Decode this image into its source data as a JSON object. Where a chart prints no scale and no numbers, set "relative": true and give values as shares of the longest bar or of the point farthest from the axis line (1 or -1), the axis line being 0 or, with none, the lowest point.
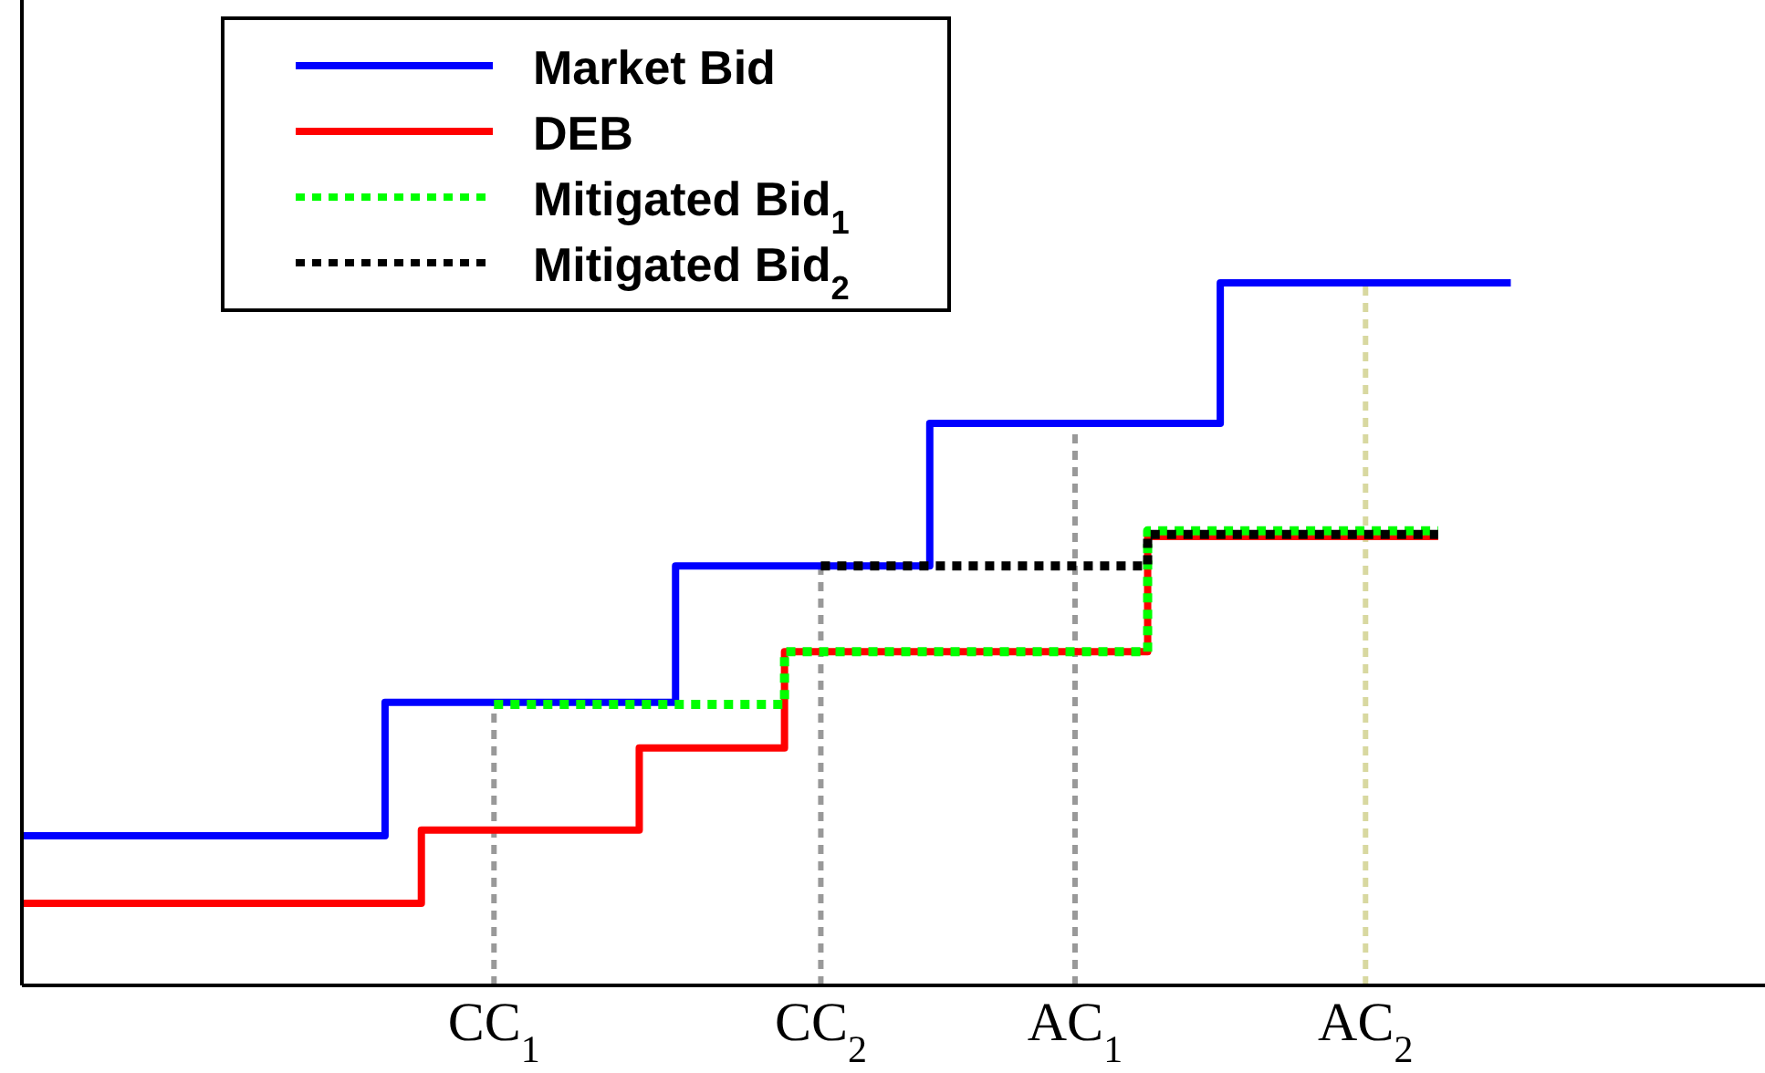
{
  "chart_data": {
    "type": "step",
    "relative": true,
    "tick_labels": "x",
    "legend": "top left",
    "categories": [
      null,
      null,
      null,
      null,
      null,
      null,
      null,
      null,
      null,
      null,
      null,
      null,
      null,
      "CC$_{1}$",
      null,
      null,
      null,
      null,
      null,
      null,
      null,
      null,
      "CC$_{2}$",
      null,
      null,
      null,
      null,
      null,
      null,
      "AC$_{1}$",
      null,
      null,
      null,
      null,
      null,
      null,
      null,
      "AC$_{2}$",
      null,
      null,
      null,
      null,
      null,
      null,
      null,
      null,
      null,
      null
    ],
    "series": [
      {
        "name": "Market Bid",
        "color": "#0000ff",
        "line_style": "solid",
        "values": [
          0.213,
          0.213,
          0.213,
          0.213,
          0.213,
          0.213,
          0.213,
          0.213,
          0.213,
          0.213,
          0.403,
          0.403,
          0.403,
          0.403,
          0.403,
          0.403,
          0.403,
          0.403,
          0.597,
          0.597,
          0.597,
          0.597,
          0.597,
          0.597,
          0.597,
          0.8,
          0.8,
          0.8,
          0.8,
          0.8,
          0.8,
          0.8,
          0.8,
          1,
          1,
          1,
          1,
          1,
          1,
          1,
          1,
          1,
          null,
          null,
          null,
          null,
          null,
          null
        ]
      },
      {
        "name": "DEB",
        "color": "#ff0000",
        "line_style": "solid",
        "values": [
          0.117,
          0.117,
          0.117,
          0.117,
          0.117,
          0.117,
          0.117,
          0.117,
          0.117,
          0.117,
          0.117,
          0.221,
          0.221,
          0.221,
          0.221,
          0.221,
          0.221,
          0.338,
          0.338,
          0.338,
          0.338,
          0.475,
          0.475,
          0.475,
          0.475,
          0.475,
          0.475,
          0.475,
          0.475,
          0.475,
          0.475,
          0.639,
          0.639,
          0.639,
          0.639,
          0.639,
          0.639,
          0.639,
          0.639,
          0.639,
          null,
          null,
          null,
          null,
          null,
          null,
          null,
          null
        ]
      },
      {
        "name": "Mitigated Bid$_{1}$",
        "color": "#00ff00",
        "line_style": "dotted",
        "values": [
          null,
          null,
          null,
          null,
          null,
          null,
          null,
          null,
          null,
          null,
          null,
          null,
          null,
          0.4,
          0.4,
          0.4,
          0.4,
          0.4,
          0.4,
          0.4,
          0.4,
          0.475,
          0.475,
          0.475,
          0.475,
          0.475,
          0.475,
          0.475,
          0.475,
          0.475,
          0.475,
          0.647,
          0.647,
          0.647,
          0.647,
          0.647,
          0.647,
          0.647,
          0.647,
          0.647,
          null,
          null,
          null,
          null,
          null,
          null,
          null,
          null
        ]
      },
      {
        "name": "Mitigated Bid$_{2}$",
        "color": "#000000",
        "line_style": "dotted",
        "values": [
          null,
          null,
          null,
          null,
          null,
          null,
          null,
          null,
          null,
          null,
          null,
          null,
          null,
          null,
          null,
          null,
          null,
          null,
          null,
          null,
          null,
          null,
          0.597,
          0.597,
          0.597,
          0.597,
          0.597,
          0.597,
          0.597,
          0.597,
          0.597,
          0.642,
          0.642,
          0.642,
          0.642,
          0.642,
          0.642,
          0.642,
          0.642,
          0.642,
          null,
          null,
          null,
          null,
          null,
          null,
          null,
          null
        ]
      }
    ],
    "ref_lines": [
      {
        "axis": "x",
        "value": "CC$_{1}$",
        "color": "#999999",
        "line_style": "dotted"
      },
      {
        "axis": "x",
        "value": "CC$_{2}$",
        "color": "#999999",
        "line_style": "dotted"
      },
      {
        "axis": "x",
        "value": "AC$_{1}$",
        "color": "#999999",
        "line_style": "dotted"
      },
      {
        "axis": "x",
        "value": "AC$_{2}$",
        "color": "#d8d8a0",
        "line_style": "dotted"
      }
    ]
  }
}
